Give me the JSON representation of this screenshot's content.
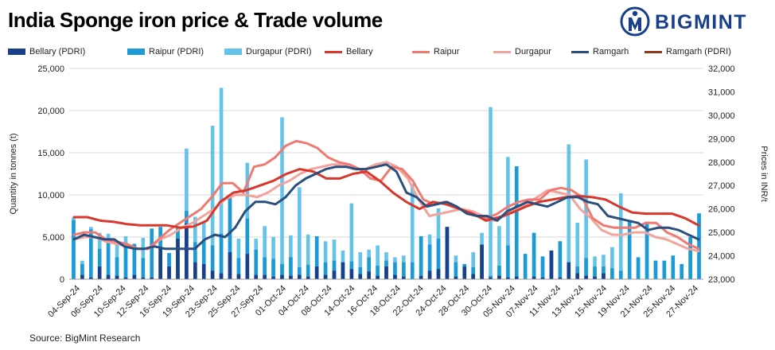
{
  "title": "India Sponge iron price & Trade volume",
  "brand": "BIGMINT",
  "source": "Source: BigMint Research",
  "chart_data": {
    "type": "bar+line",
    "ylabel_left": "Quantity in tonnes (t)",
    "ylabel_right": "Prices in INR/t",
    "ylim_left": [
      0,
      25000
    ],
    "ylim_right": [
      23000,
      32000
    ],
    "yticks_left": [
      "0",
      "5,000",
      "10,000",
      "15,000",
      "20,000",
      "25,000"
    ],
    "yticks_right": [
      "23,000",
      "24,000",
      "25,000",
      "26,000",
      "27,000",
      "28,000",
      "29,000",
      "30,000",
      "31,000",
      "32,000"
    ],
    "x_labels": [
      "04-Sep-24",
      "06-Sep-24",
      "10-Sep-24",
      "12-Sep-24",
      "16-Sep-24",
      "19-Sep-24",
      "23-Sep-24",
      "25-Sep-24",
      "27-Sep-24",
      "01-Oct-24",
      "04-Oct-24",
      "08-Oct-24",
      "14-Oct-24",
      "16-Oct-24",
      "18-Oct-24",
      "22-Oct-24",
      "24-Oct-24",
      "28-Oct-24",
      "30-Oct-24",
      "05-Nov-24",
      "07-Nov-24",
      "11-Nov-24",
      "13-Nov-24",
      "15-Nov-24",
      "19-Nov-24",
      "21-Nov-24",
      "25-Nov-24",
      "27-Nov-24"
    ],
    "legend": [
      {
        "name": "Bellary (PDRI)",
        "kind": "bar",
        "color": "#1a3f8a"
      },
      {
        "name": "Raipur (PDRI)",
        "kind": "bar",
        "color": "#1b9ad6"
      },
      {
        "name": "Durgapur (PDRI)",
        "kind": "bar",
        "color": "#63c3ea"
      },
      {
        "name": "Bellary",
        "kind": "line",
        "color": "#d8372e"
      },
      {
        "name": "Raipur",
        "kind": "line",
        "color": "#ef7a72"
      },
      {
        "name": "Durgapur",
        "kind": "line",
        "color": "#f2a49c"
      },
      {
        "name": "Ramgarh",
        "kind": "line",
        "color": "#2a4f7f"
      },
      {
        "name": "Ramgarh (PDRI)",
        "kind": "line",
        "color": "#8b3a1a"
      }
    ],
    "bars": {
      "bellary": [
        0,
        500,
        200,
        1500,
        500,
        400,
        200,
        500,
        200,
        200,
        3800,
        1500,
        4800,
        6600,
        2000,
        1800,
        1000,
        700,
        3200,
        600,
        3000,
        500,
        500,
        300,
        500,
        400,
        500,
        300,
        1500,
        500,
        1000,
        2000,
        1200,
        600,
        900,
        400,
        1500,
        500,
        300,
        0,
        400,
        1000,
        1200,
        6200,
        300,
        1500,
        600,
        4100,
        200,
        400,
        200,
        300,
        0,
        300,
        200,
        3400,
        200,
        2000,
        700,
        400,
        300,
        700
      ],
      "raipur": [
        7000,
        1800,
        5900,
        3600,
        4800,
        2600,
        4300,
        4200,
        2500,
        6000,
        6200,
        3100,
        6100,
        8100,
        4400,
        4500,
        4000,
        5400,
        9800,
        2500,
        7200,
        3500,
        2600,
        2400,
        1800,
        2600,
        1400,
        1700,
        5100,
        2000,
        2200,
        1700,
        2100,
        1400,
        2600,
        1600,
        2200,
        2000,
        2000,
        2000,
        5100,
        4100,
        4800,
        2000,
        2000,
        1800,
        1400,
        1400,
        400,
        1600,
        4000,
        13400,
        3000,
        5500,
        2700,
        2900,
        4500,
        1500,
        1500,
        2500,
        1500,
        1500,
        1300,
        1000,
        7000,
        2600,
        6800,
        2200,
        2200,
        2800,
        1800,
        5000,
        7800
      ],
      "durgapur": [
        7300,
        2200,
        6200,
        5500,
        5400,
        4200,
        5100,
        4100,
        4900,
        5400,
        6100,
        3000,
        6100,
        15500,
        7400,
        6800,
        18200,
        22700,
        6000,
        4800,
        13800,
        4800,
        6300,
        5000,
        19200,
        5200,
        10900,
        5300,
        4900,
        4500,
        4700,
        3400,
        9000,
        3200,
        3500,
        4000,
        3200,
        2600,
        2800,
        11300,
        4600,
        5300,
        8400,
        3500,
        2800,
        500,
        3200,
        5500,
        20400,
        6300,
        14500,
        4800,
        1400,
        2600,
        2600,
        2800,
        2300,
        16000,
        6700,
        14200,
        2700,
        2900,
        3800,
        10200
      ]
    },
    "series": [
      {
        "name": "Bellary",
        "values": [
          25650,
          25650,
          25500,
          25450,
          25350,
          25300,
          25300,
          25300,
          25200,
          25250,
          25500,
          26300,
          26700,
          26800,
          27000,
          27200,
          27500,
          27700,
          27600,
          27300,
          27300,
          27500,
          27600,
          27200,
          26700,
          26300,
          26000,
          26300,
          26200,
          26000,
          25800,
          25500,
          25650,
          25850,
          26100,
          26300,
          26400,
          26500,
          26550,
          26500,
          26400,
          26100,
          25850,
          25800,
          25800,
          25800,
          25600,
          25300
        ],
        "color": "#d8372e"
      },
      {
        "name": "Raipur",
        "values": [
          24900,
          25000,
          25000,
          24700,
          24600,
          24500,
          24300,
          24300,
          24700,
          25100,
          25400,
          25700,
          26000,
          26500,
          27100,
          27100,
          26700,
          27800,
          27900,
          28200,
          28700,
          28900,
          28800,
          28600,
          28200,
          28000,
          27900,
          27700,
          27300,
          27200,
          27800,
          27700,
          27200,
          26400,
          26200,
          26300,
          26100,
          25900,
          25700,
          25600,
          25800,
          26100,
          26300,
          26400,
          26400,
          26800,
          26900,
          26800,
          26500,
          25600,
          25300,
          25200,
          25200,
          25200,
          25400,
          25400,
          25000,
          24800,
          24500,
          24300
        ],
        "color": "#ef7a72"
      },
      {
        "name": "Durgapur",
        "values": [
          24700,
          24800,
          24800,
          24600,
          24500,
          24400,
          24300,
          24300,
          24700,
          24900,
          25200,
          25400,
          25700,
          26000,
          26400,
          26600,
          26600,
          26500,
          26700,
          27000,
          27200,
          27500,
          27700,
          27800,
          27900,
          27900,
          27700,
          27700,
          27900,
          28000,
          27800,
          27300,
          26400,
          25700,
          25800,
          25900,
          26000,
          25900,
          25700,
          25500,
          25700,
          26000,
          26200,
          26500,
          26800,
          26700,
          26600,
          26000,
          25600,
          25100,
          24900,
          24900,
          25000,
          25000,
          24800,
          24700,
          24500,
          24300,
          24200
        ],
        "color": "#f2a49c"
      },
      {
        "name": "Ramgarh",
        "values": [
          24700,
          24900,
          24800,
          24700,
          24700,
          24400,
          24300,
          24300,
          24400,
          24300,
          24300,
          24300,
          24300,
          24700,
          24900,
          24800,
          25200,
          25900,
          26300,
          26300,
          26200,
          26500,
          27000,
          27300,
          27500,
          27700,
          27800,
          27800,
          27700,
          27700,
          27800,
          27900,
          27600,
          26700,
          26500,
          26100,
          26200,
          26300,
          26100,
          25800,
          25700,
          25700,
          25500,
          25900,
          26100,
          26300,
          26200,
          26100,
          26300,
          26500,
          26500,
          26300,
          26200,
          25700,
          25600,
          25500,
          25400,
          25100,
          25200,
          25200,
          25100,
          24900,
          24700
        ],
        "color": "#2a4f7f"
      }
    ]
  }
}
